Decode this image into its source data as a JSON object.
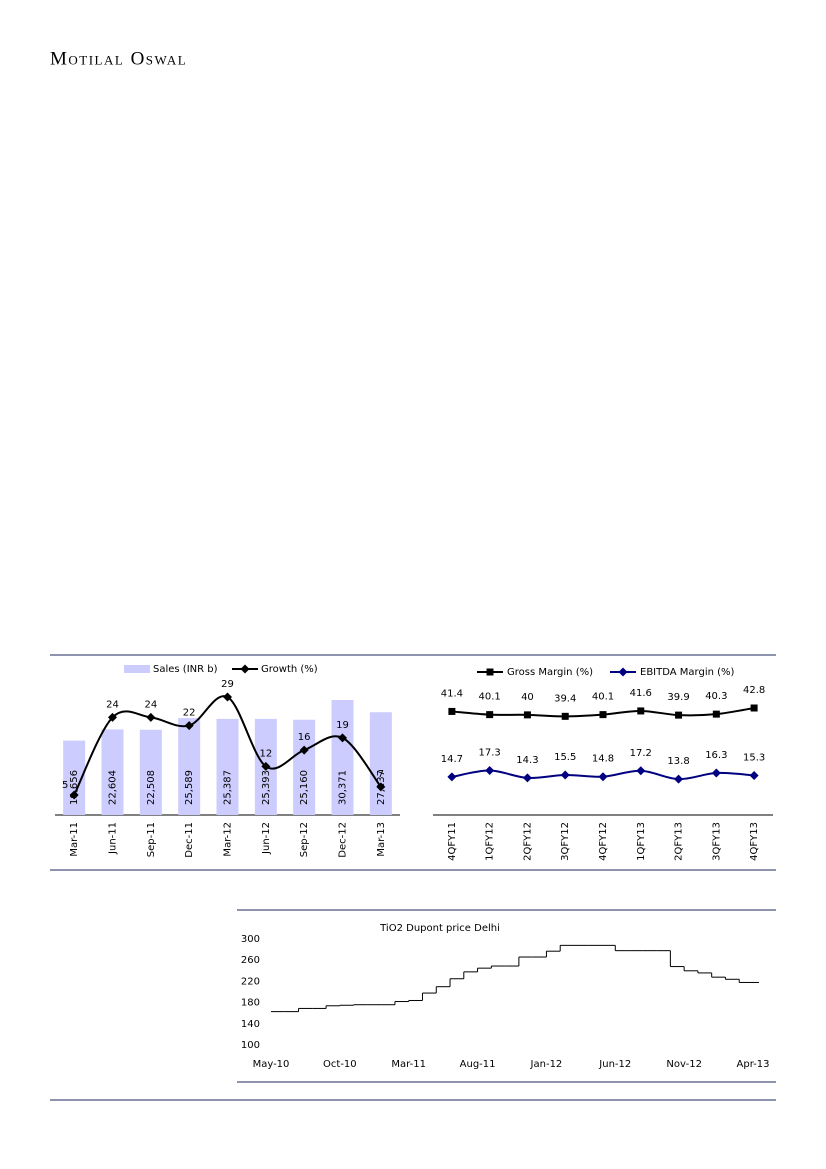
{
  "header": {
    "brand": "Motilal Oswal"
  },
  "chart_data": [
    {
      "type": "combo",
      "categories": [
        "Mar-11",
        "Jun-11",
        "Sep-11",
        "Dec-11",
        "Mar-12",
        "Jun-12",
        "Sep-12",
        "Dec-12",
        "Mar-13"
      ],
      "series": [
        {
          "name": "Sales (INR b)",
          "type": "bar",
          "color": "#ccccff",
          "values": [
            19656,
            22604,
            22508,
            25589,
            25387,
            25393,
            25160,
            30371,
            27137
          ],
          "value_labels": [
            "19,656",
            "22,604",
            "22,508",
            "25,589",
            "25,387",
            "25,393",
            "25,160",
            "30,371",
            "27,137"
          ]
        },
        {
          "name": "Growth (%)",
          "type": "line",
          "color": "#000000",
          "values": [
            5,
            24,
            24,
            22,
            29,
            12,
            16,
            19,
            7
          ]
        }
      ]
    },
    {
      "type": "line",
      "categories": [
        "4QFY11",
        "1QFY12",
        "2QFY12",
        "3QFY12",
        "4QFY12",
        "1QFY13",
        "2QFY13",
        "3QFY13",
        "4QFY13"
      ],
      "series": [
        {
          "name": "Gross Margin  (%)",
          "color": "#000000",
          "marker": "square",
          "values": [
            41.4,
            40.1,
            40,
            39.4,
            40.1,
            41.6,
            39.9,
            40.3,
            42.8
          ]
        },
        {
          "name": "EBITDA Margin (%)",
          "color": "#000080",
          "marker": "diamond",
          "values": [
            14.7,
            17.3,
            14.3,
            15.5,
            14.8,
            17.2,
            13.8,
            16.3,
            15.3
          ]
        }
      ]
    },
    {
      "type": "step",
      "title": "TiO2 Dupont  price Delhi",
      "color": "#000000",
      "x": [
        "May-10",
        "Jun-10",
        "Jul-10",
        "Aug-10",
        "Sep-10",
        "Oct-10",
        "Nov-10",
        "Dec-10",
        "Jan-11",
        "Feb-11",
        "Mar-11",
        "Apr-11",
        "May-11",
        "Jun-11",
        "Jul-11",
        "Aug-11",
        "Sep-11",
        "Oct-11",
        "Nov-11",
        "Dec-11",
        "Jan-12",
        "Feb-12",
        "Mar-12",
        "Apr-12",
        "May-12",
        "Jun-12",
        "Jul-12",
        "Aug-12",
        "Sep-12",
        "Oct-12",
        "Nov-12",
        "Dec-12",
        "Jan-13",
        "Feb-13",
        "Mar-13",
        "Apr-13"
      ],
      "values": [
        163,
        163,
        169,
        169,
        174,
        175,
        176,
        176,
        176,
        182,
        184,
        198,
        210,
        225,
        238,
        245,
        249,
        249,
        266,
        266,
        277,
        288,
        288,
        288,
        288,
        278,
        278,
        278,
        278,
        248,
        240,
        236,
        228,
        224,
        218,
        218
      ],
      "xticks": [
        "May-10",
        "Oct-10",
        "Mar-11",
        "Aug-11",
        "Jan-12",
        "Jun-12",
        "Nov-12",
        "Apr-13"
      ],
      "ylim": [
        100,
        300
      ],
      "yticks": [
        100,
        140,
        180,
        220,
        260,
        300
      ]
    }
  ]
}
